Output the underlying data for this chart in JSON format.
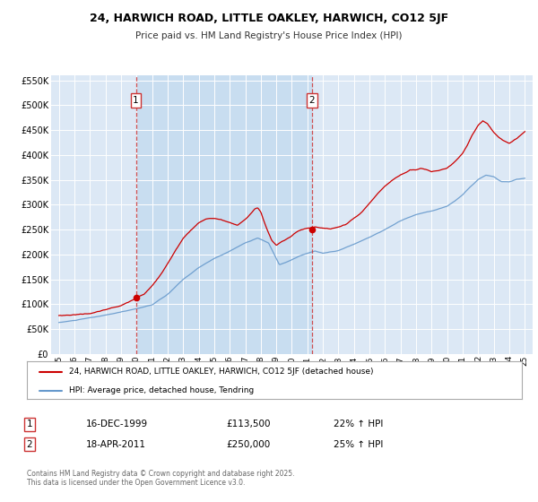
{
  "title": "24, HARWICH ROAD, LITTLE OAKLEY, HARWICH, CO12 5JF",
  "subtitle": "Price paid vs. HM Land Registry's House Price Index (HPI)",
  "plot_bg_color": "#dce8f5",
  "highlight_bg_color": "#c8ddf0",
  "red_line_color": "#cc0000",
  "blue_line_color": "#6699cc",
  "red_line_label": "24, HARWICH ROAD, LITTLE OAKLEY, HARWICH, CO12 5JF (detached house)",
  "blue_line_label": "HPI: Average price, detached house, Tendring",
  "annotation1_date": "16-DEC-1999",
  "annotation1_price": "£113,500",
  "annotation1_hpi": "22% ↑ HPI",
  "annotation2_date": "18-APR-2011",
  "annotation2_price": "£250,000",
  "annotation2_hpi": "25% ↑ HPI",
  "vline1_x": 1999.96,
  "vline2_x": 2011.29,
  "marker1_x": 1999.96,
  "marker1_y": 113500,
  "marker2_x": 2011.29,
  "marker2_y": 250000,
  "ylim": [
    0,
    560000
  ],
  "xlim": [
    1994.5,
    2025.5
  ],
  "footer": "Contains HM Land Registry data © Crown copyright and database right 2025.\nThis data is licensed under the Open Government Licence v3.0."
}
